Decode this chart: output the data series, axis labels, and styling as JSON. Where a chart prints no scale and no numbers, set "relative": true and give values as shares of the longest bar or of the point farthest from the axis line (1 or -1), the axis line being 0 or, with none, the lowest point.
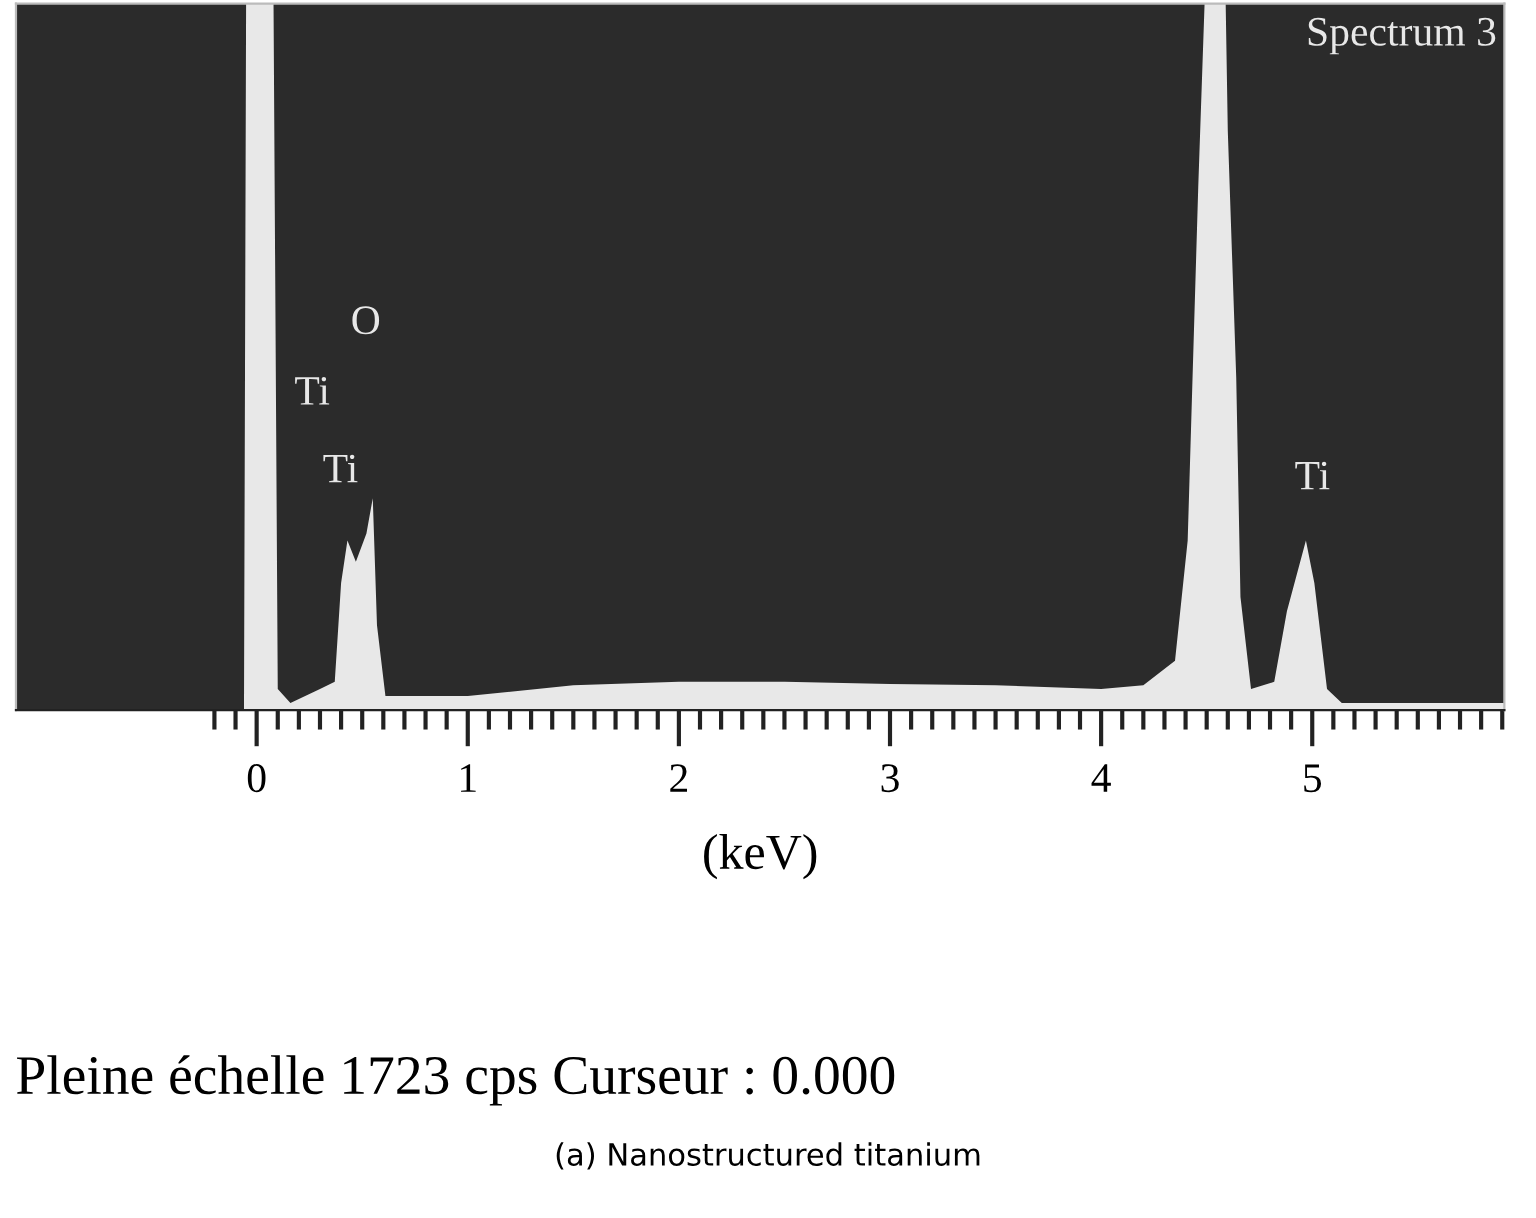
{
  "chart_data": {
    "type": "area",
    "relative": true,
    "xlabel": "(keV)",
    "grid": false,
    "legend": false,
    "xlim": [
      -1.14,
      5.91
    ],
    "xticks": [
      0,
      1,
      2,
      3,
      4,
      5,
      {
        "value": -0.2,
        "label": null
      },
      {
        "value": -0.1,
        "label": null
      },
      {
        "value": 0.1,
        "label": null
      },
      {
        "value": 0.2,
        "label": null
      },
      {
        "value": 0.3,
        "label": null
      },
      {
        "value": 0.4,
        "label": null
      },
      {
        "value": 0.5,
        "label": null
      },
      {
        "value": 0.6,
        "label": null
      },
      {
        "value": 0.7,
        "label": null
      },
      {
        "value": 0.8,
        "label": null
      },
      {
        "value": 0.9,
        "label": null
      },
      {
        "value": 1.1,
        "label": null
      },
      {
        "value": 1.2,
        "label": null
      },
      {
        "value": 1.3,
        "label": null
      },
      {
        "value": 1.4,
        "label": null
      },
      {
        "value": 1.5,
        "label": null
      },
      {
        "value": 1.6,
        "label": null
      },
      {
        "value": 1.7,
        "label": null
      },
      {
        "value": 1.8,
        "label": null
      },
      {
        "value": 1.9,
        "label": null
      },
      {
        "value": 2.1,
        "label": null
      },
      {
        "value": 2.2,
        "label": null
      },
      {
        "value": 2.3,
        "label": null
      },
      {
        "value": 2.4,
        "label": null
      },
      {
        "value": 2.5,
        "label": null
      },
      {
        "value": 2.6,
        "label": null
      },
      {
        "value": 2.7,
        "label": null
      },
      {
        "value": 2.8,
        "label": null
      },
      {
        "value": 2.9,
        "label": null
      },
      {
        "value": 3.1,
        "label": null
      },
      {
        "value": 3.2,
        "label": null
      },
      {
        "value": 3.3,
        "label": null
      },
      {
        "value": 3.4,
        "label": null
      },
      {
        "value": 3.5,
        "label": null
      },
      {
        "value": 3.6,
        "label": null
      },
      {
        "value": 3.7,
        "label": null
      },
      {
        "value": 3.8,
        "label": null
      },
      {
        "value": 3.9,
        "label": null
      },
      {
        "value": 4.1,
        "label": null
      },
      {
        "value": 4.2,
        "label": null
      },
      {
        "value": 4.3,
        "label": null
      },
      {
        "value": 4.4,
        "label": null
      },
      {
        "value": 4.5,
        "label": null
      },
      {
        "value": 4.6,
        "label": null
      },
      {
        "value": 4.7,
        "label": null
      },
      {
        "value": 4.8,
        "label": null
      },
      {
        "value": 4.9,
        "label": null
      },
      {
        "value": 5.1,
        "label": null
      },
      {
        "value": 5.2,
        "label": null
      },
      {
        "value": 5.3,
        "label": null
      },
      {
        "value": 5.4,
        "label": null
      },
      {
        "value": 5.5,
        "label": null
      },
      {
        "value": 5.6,
        "label": null
      },
      {
        "value": 5.7,
        "label": null
      },
      {
        "value": 5.8,
        "label": null
      },
      {
        "value": 5.9,
        "label": null
      }
    ],
    "series": [
      {
        "name": "Spectrum 3",
        "color": "#e8e8e8",
        "x": [
          -1.14,
          -0.06,
          -0.05,
          0.08,
          0.1,
          0.16,
          0.3,
          0.37,
          0.4,
          0.43,
          0.47,
          0.52,
          0.55,
          0.57,
          0.61,
          1.0,
          1.5,
          2.0,
          2.5,
          3.0,
          3.5,
          4.0,
          4.2,
          4.35,
          4.41,
          4.46,
          4.49,
          4.59,
          4.6,
          4.64,
          4.66,
          4.71,
          4.82,
          4.88,
          4.97,
          5.01,
          5.07,
          5.14,
          5.5,
          5.91
        ],
        "values": [
          0,
          0,
          1,
          1,
          0.03,
          0.01,
          0.03,
          0.04,
          0.18,
          0.24,
          0.21,
          0.25,
          0.3,
          0.12,
          0.02,
          0.02,
          0.035,
          0.04,
          0.04,
          0.037,
          0.035,
          0.03,
          0.035,
          0.07,
          0.24,
          0.74,
          1,
          1,
          0.82,
          0.47,
          0.16,
          0.03,
          0.04,
          0.14,
          0.24,
          0.18,
          0.03,
          0.01,
          0.01,
          0.01
        ]
      }
    ],
    "annotations": [
      "Ti",
      "O",
      "Ti",
      "Ti",
      "Pleine échelle 1723 cps Curseur : 0.000",
      "(a) Nanostructured titanium"
    ]
  }
}
